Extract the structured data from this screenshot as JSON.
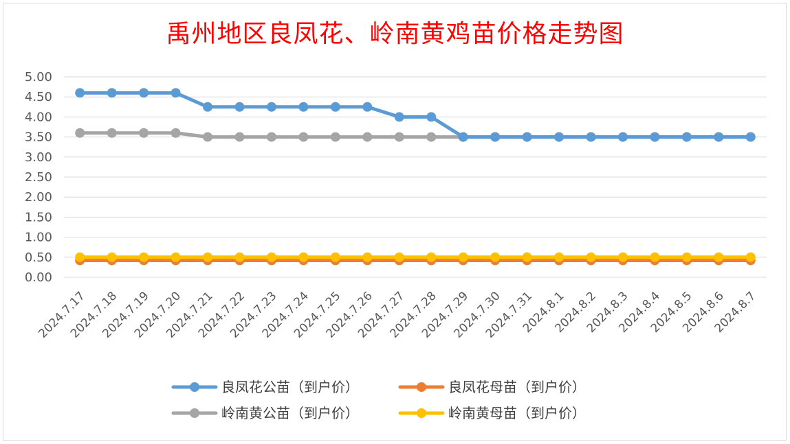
{
  "chart_data": {
    "type": "line",
    "title": "禹州地区良凤花、岭南黄鸡苗价格走势图",
    "xlabel": "",
    "ylabel": "",
    "ylim": [
      0,
      5
    ],
    "yticks": [
      "0.00",
      "0.50",
      "1.00",
      "1.50",
      "2.00",
      "2.50",
      "3.00",
      "3.50",
      "4.00",
      "4.50",
      "5.00"
    ],
    "grid": true,
    "legend_position": "bottom",
    "categories": [
      "2024.7.17",
      "2024.7.18",
      "2024.7.19",
      "2024.7.20",
      "2024.7.21",
      "2024.7.22",
      "2024.7.23",
      "2024.7.24",
      "2024.7.25",
      "2024.7.26",
      "2024.7.27",
      "2024.7.28",
      "2024.7.29",
      "2024.7.30",
      "2024.7.31",
      "2024.8.1",
      "2024.8.2",
      "2024.8.3",
      "2024.8.4",
      "2024.8.5",
      "2024.8.6",
      "2024.8.7"
    ],
    "series": [
      {
        "name": "良凤花公苗（到户价）",
        "color": "#5b9bd5",
        "values": [
          4.6,
          4.6,
          4.6,
          4.6,
          4.25,
          4.25,
          4.25,
          4.25,
          4.25,
          4.25,
          4.0,
          4.0,
          3.5,
          3.5,
          3.5,
          3.5,
          3.5,
          3.5,
          3.5,
          3.5,
          3.5,
          3.5
        ]
      },
      {
        "name": "良凤花母苗（到户价）",
        "color": "#ed7d31",
        "values": [
          0.42,
          0.42,
          0.42,
          0.42,
          0.42,
          0.42,
          0.42,
          0.42,
          0.42,
          0.42,
          0.42,
          0.42,
          0.42,
          0.42,
          0.42,
          0.42,
          0.42,
          0.42,
          0.42,
          0.42,
          0.42,
          0.42
        ]
      },
      {
        "name": "岭南黄公苗（到户价）",
        "color": "#a5a5a5",
        "values": [
          3.6,
          3.6,
          3.6,
          3.6,
          3.5,
          3.5,
          3.5,
          3.5,
          3.5,
          3.5,
          3.5,
          3.5,
          3.5,
          3.5,
          3.5,
          3.5,
          3.5,
          3.5,
          3.5,
          3.5,
          3.5,
          3.5
        ]
      },
      {
        "name": "岭南黄母苗（到户价）",
        "color": "#ffc000",
        "values": [
          0.5,
          0.5,
          0.5,
          0.5,
          0.5,
          0.5,
          0.5,
          0.5,
          0.5,
          0.5,
          0.5,
          0.5,
          0.5,
          0.5,
          0.5,
          0.5,
          0.5,
          0.5,
          0.5,
          0.5,
          0.5,
          0.5
        ]
      }
    ]
  }
}
